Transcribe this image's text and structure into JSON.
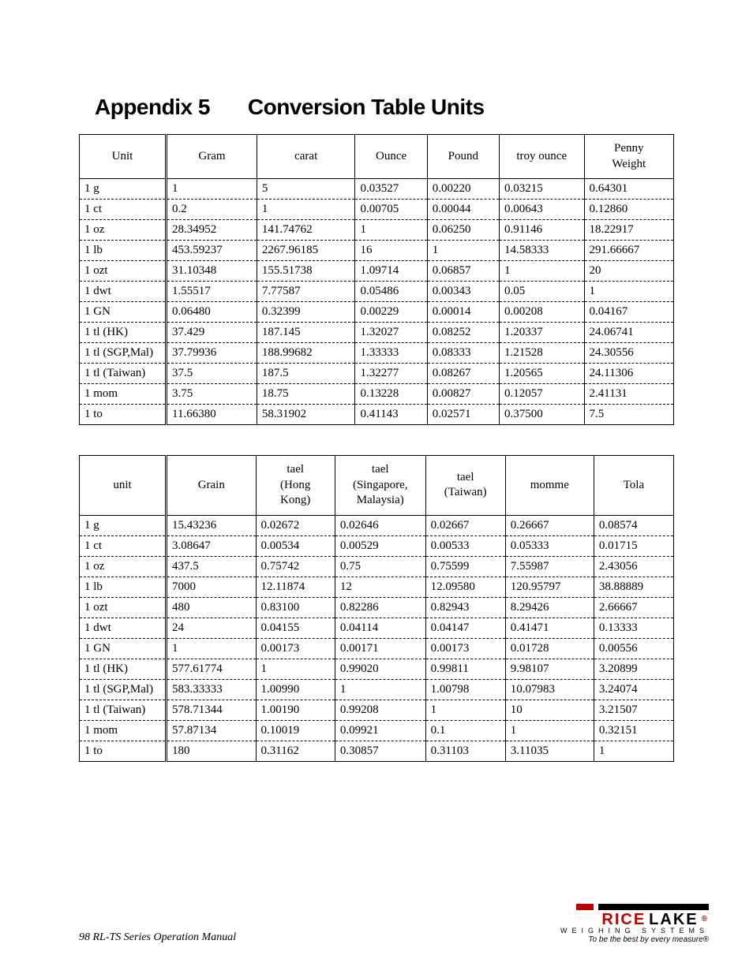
{
  "title_a": "Appendix 5",
  "title_b": "Conversion Table Units",
  "footer_text": "98  RL-TS Series Operation Manual",
  "logo": {
    "name_a": "RICE",
    "name_b": "LAKE",
    "sub": "WEIGHING SYSTEMS",
    "tag": "To be the best by every measure®"
  },
  "table1": {
    "columns": [
      "Unit",
      "Gram",
      "carat",
      "Ounce",
      "Pound",
      "troy ounce",
      "Penny Weight"
    ],
    "rows": [
      [
        "1 g",
        "1",
        "5",
        "0.03527",
        "0.00220",
        "0.03215",
        "0.64301"
      ],
      [
        "1 ct",
        "0.2",
        "1",
        "0.00705",
        "0.00044",
        "0.00643",
        "0.12860"
      ],
      [
        "1 oz",
        "28.34952",
        "141.74762",
        "1",
        "0.06250",
        "0.91146",
        "18.22917"
      ],
      [
        "1 lb",
        "453.59237",
        "2267.96185",
        "16",
        "1",
        "14.58333",
        "291.66667"
      ],
      [
        "1 ozt",
        "31.10348",
        "155.51738",
        "1.09714",
        "0.06857",
        "1",
        "20"
      ],
      [
        "1 dwt",
        "1.55517",
        "7.77587",
        "0.05486",
        "0.00343",
        "0.05",
        "1"
      ],
      [
        "1 GN",
        "0.06480",
        "0.32399",
        "0.00229",
        "0.00014",
        "0.00208",
        "0.04167"
      ],
      [
        "1 tl (HK)",
        "37.429",
        "187.145",
        "1.32027",
        "0.08252",
        "1.20337",
        "24.06741"
      ],
      [
        "1 tl (SGP,Mal)",
        "37.79936",
        "188.99682",
        "1.33333",
        "0.08333",
        "1.21528",
        "24.30556"
      ],
      [
        "1 tl (Taiwan)",
        "37.5",
        "187.5",
        "1.32277",
        "0.08267",
        "1.20565",
        "24.11306"
      ],
      [
        "1 mom",
        "3.75",
        "18.75",
        "0.13228",
        "0.00827",
        "0.12057",
        "2.41131"
      ],
      [
        "1 to",
        "11.66380",
        "58.31902",
        "0.41143",
        "0.02571",
        "0.37500",
        "7.5"
      ]
    ]
  },
  "table2": {
    "columns": [
      "unit",
      "Grain",
      "tael (Hong Kong)",
      "tael (Singapore, Malaysia)",
      "tael (Taiwan)",
      "momme",
      "Tola"
    ],
    "rows": [
      [
        "1 g",
        "15.43236",
        "0.02672",
        "0.02646",
        "0.02667",
        "0.26667",
        "0.08574"
      ],
      [
        "1 ct",
        "3.08647",
        "0.00534",
        "0.00529",
        "0.00533",
        "0.05333",
        "0.01715"
      ],
      [
        "1 oz",
        "437.5",
        "0.75742",
        "0.75",
        "0.75599",
        "7.55987",
        "2.43056"
      ],
      [
        "1 lb",
        "7000",
        "12.11874",
        "12",
        "12.09580",
        "120.95797",
        "38.88889"
      ],
      [
        "1 ozt",
        "480",
        "0.83100",
        "0.82286",
        "0.82943",
        "8.29426",
        "2.66667"
      ],
      [
        "1 dwt",
        "24",
        "0.04155",
        "0.04114",
        "0.04147",
        "0.41471",
        "0.13333"
      ],
      [
        "1 GN",
        "1",
        "0.00173",
        "0.00171",
        "0.00173",
        "0.01728",
        "0.00556"
      ],
      [
        "1 tl (HK)",
        "577.61774",
        "1",
        "0.99020",
        "0.99811",
        "9.98107",
        "3.20899"
      ],
      [
        "1 tl (SGP,Mal)",
        "583.33333",
        "1.00990",
        "1",
        "1.00798",
        "10.07983",
        "3.24074"
      ],
      [
        "1 tl (Taiwan)",
        "578.71344",
        "1.00190",
        "0.99208",
        "1",
        "10",
        "3.21507"
      ],
      [
        "1 mom",
        "57.87134",
        "0.10019",
        "0.09921",
        "0.1",
        "1",
        "0.32151"
      ],
      [
        "1 to",
        "180",
        "0.31162",
        "0.30857",
        "0.31103",
        "3.11035",
        "1"
      ]
    ]
  }
}
